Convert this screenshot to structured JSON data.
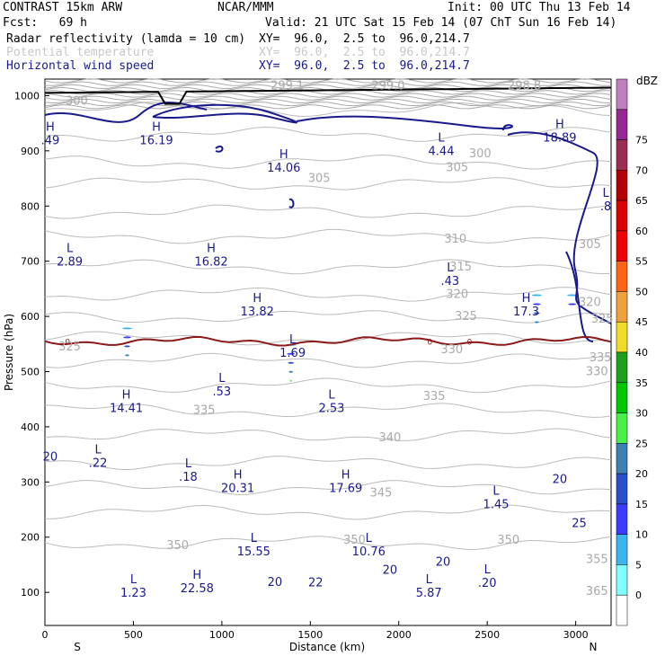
{
  "header": {
    "model": "CONTRAST 15km ARW",
    "org": "NCAR/MMM",
    "init": "Init: 00 UTC Thu 13 Feb 14",
    "fcst": "Fcst:   69 h",
    "valid": "Valid: 21 UTC Sat 15 Feb 14 (07 ChT Sun 16 Feb 14)",
    "fields": [
      {
        "name": "Radar reflectivity (lamda = 10 cm)",
        "xy": "XY=  96.0,  2.5 to  96.0,214.7",
        "color": "#000000"
      },
      {
        "name": "Potential temperature",
        "xy": "XY=  96.0,  2.5 to  96.0,214.7",
        "color": "#c8c8c8"
      },
      {
        "name": "Horizontal wind speed",
        "xy": "XY=  96.0,  2.5 to  96.0,214.7",
        "color": "#1a1a8c"
      }
    ]
  },
  "chart_data": {
    "type": "heatmap",
    "title": "",
    "xlabel": "Distance (km)",
    "ylabel": "Pressure (hPa)",
    "xlim": [
      0,
      3200
    ],
    "ylim": [
      1030,
      40
    ],
    "x_ticks": [
      0,
      500,
      1000,
      1500,
      2000,
      2500,
      3000
    ],
    "y_ticks": [
      100,
      200,
      300,
      400,
      500,
      600,
      700,
      800,
      900,
      1000
    ],
    "x_endpoints": {
      "left": "S",
      "right": "N"
    },
    "colorbar": {
      "unit": "dBZ",
      "levels": [
        0,
        5,
        10,
        15,
        20,
        25,
        30,
        35,
        40,
        45,
        50,
        55,
        60,
        65,
        70,
        75
      ],
      "colors": [
        "#ffffff",
        "#80ffff",
        "#3cb4f0",
        "#3c3cff",
        "#2850c8",
        "#3c80b4",
        "#48f048",
        "#00c800",
        "#1ea01e",
        "#f0dc28",
        "#f0a03c",
        "#ff6414",
        "#f00000",
        "#dc0000",
        "#b40000",
        "#9b2d55",
        "#962896",
        "#c080c0"
      ]
    },
    "reflectivity_columns": [
      {
        "x": 465,
        "top": 580,
        "bottom": 1005,
        "max_dbz": 20
      },
      {
        "x": 1390,
        "top": 550,
        "bottom": 1005,
        "max_dbz": 35
      },
      {
        "x": 2780,
        "top": 640,
        "bottom": 1005,
        "max_dbz": 20
      },
      {
        "x": 2980,
        "top": 640,
        "bottom": 1005,
        "max_dbz": 10
      }
    ],
    "theta_labels": [
      {
        "v": "350",
        "x": 750,
        "p": 185
      },
      {
        "v": "350",
        "x": 1750,
        "p": 195
      },
      {
        "v": "350",
        "x": 2620,
        "p": 195
      },
      {
        "v": "345",
        "x": 1900,
        "p": 280
      },
      {
        "v": "340",
        "x": 1950,
        "p": 380
      },
      {
        "v": "335",
        "x": 900,
        "p": 430
      },
      {
        "v": "335",
        "x": 2200,
        "p": 455
      },
      {
        "v": "330",
        "x": 2300,
        "p": 540
      },
      {
        "v": "325",
        "x": 140,
        "p": 545
      },
      {
        "v": "325",
        "x": 2380,
        "p": 600
      },
      {
        "v": "320",
        "x": 2330,
        "p": 640
      },
      {
        "v": "320",
        "x": 3080,
        "p": 625
      },
      {
        "v": "315",
        "x": 2350,
        "p": 690
      },
      {
        "v": "310",
        "x": 2320,
        "p": 740
      },
      {
        "v": "305",
        "x": 1550,
        "p": 850
      },
      {
        "v": "305",
        "x": 2330,
        "p": 870
      },
      {
        "v": "305",
        "x": 3080,
        "p": 730
      },
      {
        "v": "300",
        "x": 2460,
        "p": 895
      },
      {
        "v": "300",
        "x": 180,
        "p": 990
      },
      {
        "v": "299.1",
        "x": 1370,
        "p": 1018
      },
      {
        "v": "299.0",
        "x": 1940,
        "p": 1018
      },
      {
        "v": "298.8",
        "x": 2710,
        "p": 1018
      },
      {
        "v": "365",
        "x": 3120,
        "p": 102
      },
      {
        "v": "355",
        "x": 3120,
        "p": 160
      },
      {
        "v": "325",
        "x": 3150,
        "p": 595
      },
      {
        "v": "335",
        "x": 3140,
        "p": 525
      },
      {
        "v": "330",
        "x": 3120,
        "p": 500
      }
    ],
    "wind_labels": [
      {
        "v": "20",
        "x": 1300,
        "p": 118
      },
      {
        "v": "20",
        "x": 1950,
        "p": 140
      },
      {
        "v": "20",
        "x": 2250,
        "p": 155
      },
      {
        "v": "20",
        "x": 2910,
        "p": 305
      },
      {
        "v": "20",
        "x": 30,
        "p": 345
      },
      {
        "v": "25",
        "x": 3020,
        "p": 225
      },
      {
        "v": "22",
        "x": 1530,
        "p": 117
      }
    ],
    "extrema": [
      {
        "k": "L",
        "v": "1.23",
        "x": 500,
        "p": 110
      },
      {
        "k": "H",
        "v": "22.58",
        "x": 860,
        "p": 118
      },
      {
        "k": "L",
        "v": "5.87",
        "x": 2170,
        "p": 110
      },
      {
        "k": "L",
        "v": ".20",
        "x": 2500,
        "p": 128
      },
      {
        "k": "L",
        "v": "15.55",
        "x": 1180,
        "p": 185
      },
      {
        "k": "L",
        "v": "10.76",
        "x": 1830,
        "p": 185
      },
      {
        "k": "L",
        "v": "1.45",
        "x": 2550,
        "p": 270
      },
      {
        "k": "H",
        "v": "20.31",
        "x": 1090,
        "p": 300
      },
      {
        "k": "H",
        "v": "17.69",
        "x": 1700,
        "p": 300
      },
      {
        "k": "L",
        "v": ".18",
        "x": 810,
        "p": 320
      },
      {
        "k": "L",
        "v": ".22",
        "x": 300,
        "p": 345
      },
      {
        "k": "H",
        "v": "14.41",
        "x": 460,
        "p": 445
      },
      {
        "k": "L",
        "v": ".53",
        "x": 1000,
        "p": 475
      },
      {
        "k": "L",
        "v": "2.53",
        "x": 1620,
        "p": 445
      },
      {
        "k": "L",
        "v": "1.69",
        "x": 1400,
        "p": 545
      },
      {
        "k": "H",
        "v": "13.82",
        "x": 1200,
        "p": 620
      },
      {
        "k": "H",
        "v": "17.3",
        "x": 2720,
        "p": 620
      },
      {
        "k": "L",
        "v": ".43",
        "x": 2290,
        "p": 675
      },
      {
        "k": "L",
        "v": "2.89",
        "x": 140,
        "p": 710
      },
      {
        "k": "H",
        "v": "16.82",
        "x": 940,
        "p": 710
      },
      {
        "k": "H",
        "v": "14.06",
        "x": 1350,
        "p": 880
      },
      {
        "k": "L",
        "v": "4.44",
        "x": 2240,
        "p": 910
      },
      {
        "k": "H",
        "v": ".49",
        "x": 30,
        "p": 930
      },
      {
        "k": "H",
        "v": "16.19",
        "x": 630,
        "p": 930
      },
      {
        "k": "H",
        "v": "18.89",
        "x": 2910,
        "p": 935
      },
      {
        "k": "L",
        "v": ".8",
        "x": 3170,
        "p": 810
      }
    ],
    "freezing_level": {
      "label": "0",
      "pressure": 555
    }
  }
}
